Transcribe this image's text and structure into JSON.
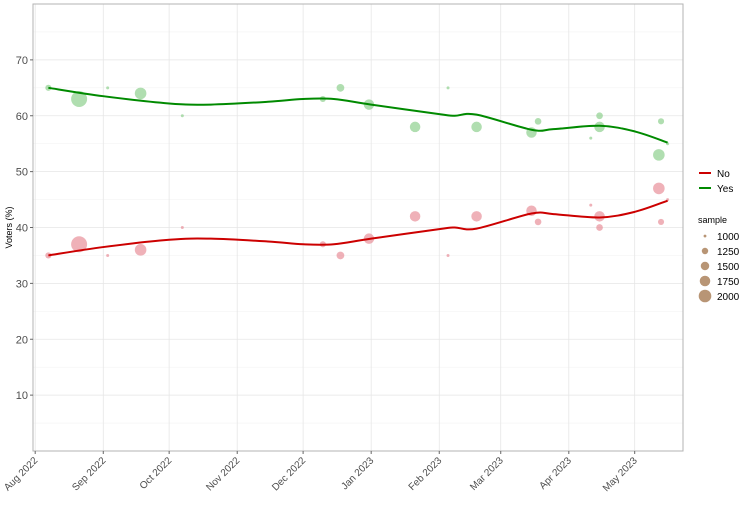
{
  "chart_data": {
    "type": "scatter",
    "title": "",
    "xlabel": "",
    "ylabel": "Voters (%)",
    "ylim": [
      0,
      80
    ],
    "xlim": [
      "2022-07-31",
      "2023-05-23"
    ],
    "y_ticks": [
      10,
      20,
      30,
      40,
      50,
      60,
      70
    ],
    "x_ticks": [
      {
        "date": "2022-08-01",
        "label": "Aug 2022"
      },
      {
        "date": "2022-09-01",
        "label": "Sep 2022"
      },
      {
        "date": "2022-10-01",
        "label": "Oct 2022"
      },
      {
        "date": "2022-11-01",
        "label": "Nov 2022"
      },
      {
        "date": "2022-12-01",
        "label": "Dec 2022"
      },
      {
        "date": "2023-01-01",
        "label": "Jan 2023"
      },
      {
        "date": "2023-02-01",
        "label": "Feb 2023"
      },
      {
        "date": "2023-03-01",
        "label": "Mar 2023"
      },
      {
        "date": "2023-04-01",
        "label": "Apr 2023"
      },
      {
        "date": "2023-05-01",
        "label": "May 2023"
      }
    ],
    "grid": true,
    "legend_position": "right",
    "series": [
      {
        "name": "No",
        "color": "#cc0000",
        "point_color": "#e8909a"
      },
      {
        "name": "Yes",
        "color": "#008a00",
        "point_color": "#8fd08f"
      }
    ],
    "polls": [
      {
        "date": "2022-08-07",
        "yes": 65,
        "no": 35,
        "sample": 1100
      },
      {
        "date": "2022-08-21",
        "yes": 63,
        "no": 37,
        "sample": 2000
      },
      {
        "date": "2022-09-03",
        "yes": 65,
        "no": 35,
        "sample": 1000
      },
      {
        "date": "2022-09-18",
        "yes": 64,
        "no": 36,
        "sample": 1600
      },
      {
        "date": "2022-10-07",
        "yes": 60,
        "no": 40,
        "sample": 1000
      },
      {
        "date": "2022-12-10",
        "yes": 63,
        "no": 37,
        "sample": 1100
      },
      {
        "date": "2022-12-18",
        "yes": 65,
        "no": 35,
        "sample": 1250
      },
      {
        "date": "2022-12-31",
        "yes": 62,
        "no": 38,
        "sample": 1500
      },
      {
        "date": "2023-01-21",
        "yes": 58,
        "no": 42,
        "sample": 1500
      },
      {
        "date": "2023-02-05",
        "yes": 65,
        "no": 35,
        "sample": 1000
      },
      {
        "date": "2023-02-18",
        "yes": 58,
        "no": 42,
        "sample": 1500
      },
      {
        "date": "2023-03-15",
        "yes": 57,
        "no": 43,
        "sample": 1500
      },
      {
        "date": "2023-03-18",
        "yes": 59,
        "no": 41,
        "sample": 1150
      },
      {
        "date": "2023-04-11",
        "yes": 56,
        "no": 44,
        "sample": 1000
      },
      {
        "date": "2023-04-15",
        "yes": 58,
        "no": 42,
        "sample": 1500
      },
      {
        "date": "2023-04-15",
        "yes": 60,
        "no": 40,
        "sample": 1150
      },
      {
        "date": "2023-05-12",
        "yes": 53,
        "no": 47,
        "sample": 1600
      },
      {
        "date": "2023-05-13",
        "yes": 59,
        "no": 41,
        "sample": 1100
      },
      {
        "date": "2023-05-16",
        "yes": 55,
        "no": 45,
        "sample": 1000
      }
    ],
    "smooth": {
      "dates": [
        "2022-08-07",
        "2022-09-01",
        "2022-10-01",
        "2022-10-20",
        "2022-11-15",
        "2022-12-01",
        "2022-12-15",
        "2023-01-01",
        "2023-02-01",
        "2023-02-08",
        "2023-02-18",
        "2023-03-15",
        "2023-03-25",
        "2023-04-15",
        "2023-05-01",
        "2023-05-16"
      ],
      "yes": [
        65,
        63.5,
        62.2,
        62,
        62.5,
        63,
        63,
        62,
        60.3,
        60,
        60.2,
        57.5,
        57.6,
        58.2,
        57.2,
        55.2
      ],
      "no": [
        35,
        36.5,
        37.8,
        38,
        37.5,
        37,
        37,
        38,
        39.7,
        40,
        39.8,
        42.5,
        42.4,
        41.8,
        42.8,
        44.8
      ]
    },
    "legend_color": {
      "title": "",
      "items": [
        "No",
        "Yes"
      ]
    },
    "legend_size": {
      "title": "sample",
      "items": [
        1000,
        1250,
        1500,
        1750,
        2000
      ],
      "color": "#b08a66"
    }
  }
}
